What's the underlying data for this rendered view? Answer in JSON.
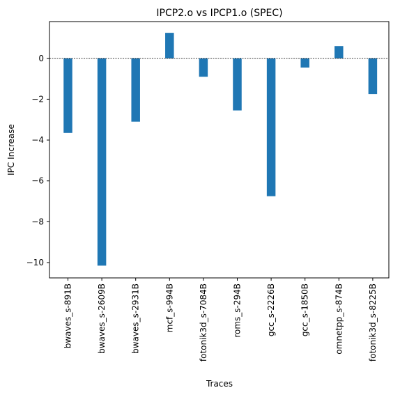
{
  "chart_data": {
    "type": "bar",
    "title": "IPCP2.o vs IPCP1.o (SPEC)",
    "xlabel": "Traces",
    "ylabel": "IPC Increase",
    "categories": [
      "bwaves_s-891B",
      "bwaves_s-2609B",
      "bwaves_s-2931B",
      "mcf_s-994B",
      "fotonik3d_s-7084B",
      "roms_s-294B",
      "gcc_s-2226B",
      "gcc_s-1850B",
      "omnetpp_s-874B",
      "fotonik3d_s-8225B"
    ],
    "values": [
      -3.65,
      -10.15,
      -3.1,
      1.25,
      -0.9,
      -2.55,
      -6.75,
      -0.45,
      0.6,
      -1.75
    ],
    "ylim": [
      -10.75,
      1.8
    ],
    "yticks": [
      0,
      -2,
      -4,
      -6,
      -8,
      -10
    ],
    "ytick_labels": [
      "0",
      "−2",
      "−4",
      "−6",
      "−8",
      "−10"
    ],
    "bar_color": "#1f77b4",
    "zero_line": "dashed",
    "grid": false
  }
}
